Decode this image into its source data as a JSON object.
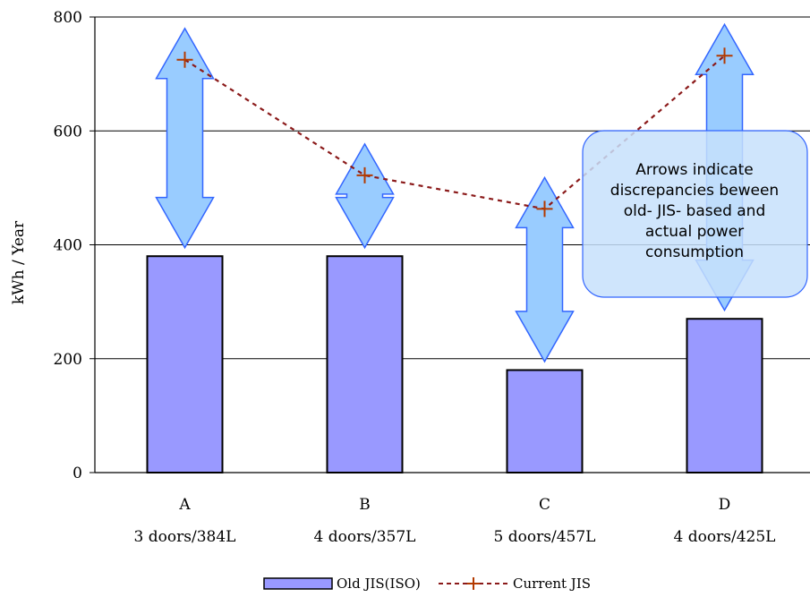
{
  "chart_data": {
    "type": "bar",
    "ylabel": "kWh / Year",
    "ylim": [
      0,
      800
    ],
    "yticks": [
      "0",
      "200",
      "400",
      "600",
      "800"
    ],
    "grid": true,
    "categories": [
      {
        "letter": "A",
        "detail": "3 doors/384L"
      },
      {
        "letter": "B",
        "detail": "4 doors/357L"
      },
      {
        "letter": "C",
        "detail": "5 doors/457L"
      },
      {
        "letter": "D",
        "detail": "4 doors/425L"
      }
    ],
    "series": [
      {
        "name": "Old JIS(ISO)",
        "kind": "bar",
        "color": "#9999ff",
        "values": [
          380,
          380,
          180,
          270
        ]
      },
      {
        "name": "Current JIS",
        "kind": "line",
        "color": "#8b1a1a",
        "values": [
          725,
          522,
          463,
          732
        ]
      }
    ],
    "arrow_color": "#99ccff",
    "note_color": "#c7e1fb",
    "legend_position": "bottom",
    "annotation": {
      "lines": [
        "Arrows indicate",
        "discrepancies beween",
        "old- JIS- based and",
        "actual power",
        "consumption"
      ]
    }
  }
}
